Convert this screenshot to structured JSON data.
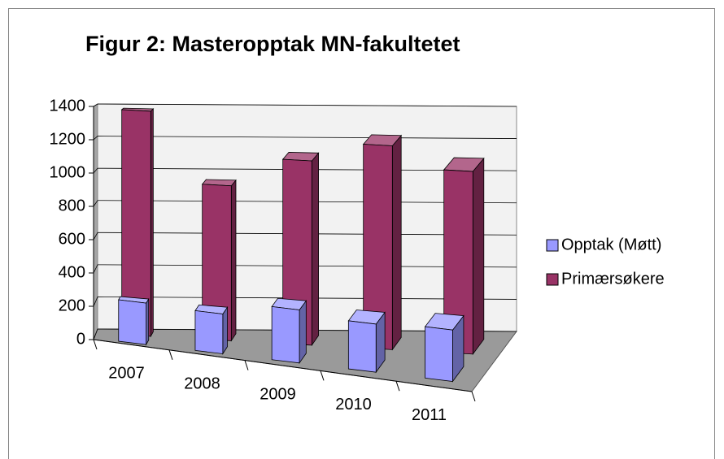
{
  "chart_data": {
    "type": "bar3d",
    "title": "Figur 2: Masteropptak MN-fakultetet",
    "categories": [
      "2007",
      "2008",
      "2009",
      "2010",
      "2011"
    ],
    "series": [
      {
        "name": "Opptak (Møtt)",
        "color": "#9999ff",
        "values": [
          250,
          240,
          320,
          290,
          310
        ]
      },
      {
        "name": "Primærsøkere",
        "color": "#993366",
        "values": [
          1380,
          950,
          1130,
          1250,
          1120
        ]
      }
    ],
    "ylim": [
      0,
      1400
    ],
    "yticks": [
      0,
      200,
      400,
      600,
      800,
      1000,
      1200,
      1400
    ],
    "grid": true,
    "legend": "right"
  }
}
